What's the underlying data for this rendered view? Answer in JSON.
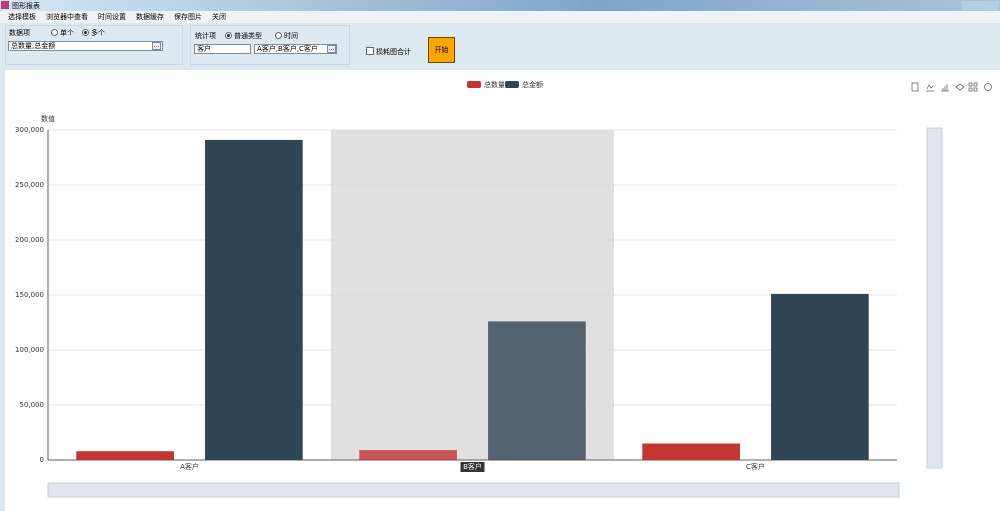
{
  "window": {
    "title": "图形报表"
  },
  "menu": [
    "选择模板",
    "浏览器中查看",
    "时间设置",
    "数据缓存",
    "保存图片",
    "关闭"
  ],
  "data_group": {
    "label": "数据项",
    "options": [
      "单个",
      "多个"
    ],
    "input": "总数量,总金额",
    "button": "..."
  },
  "stat_group": {
    "label": "统计项",
    "options": [
      "普通类型",
      "时间"
    ],
    "select": "客户",
    "input": "A客户,B客户,C客户",
    "button": "..."
  },
  "checkbox": "损耗图合计",
  "start_button": "开始",
  "chart_data": {
    "type": "bar",
    "y_label": "数值",
    "categories": [
      "A客户",
      "B客户",
      "C客户"
    ],
    "series": [
      {
        "name": "总数量",
        "color": "#c23531",
        "values": [
          8000,
          9000,
          15000
        ]
      },
      {
        "name": "总金额",
        "color": "#2f4554",
        "values": [
          291000,
          126000,
          151000
        ]
      }
    ],
    "ylim": [
      0,
      300000
    ],
    "yticks": [
      0,
      {
        "value": 50000,
        "label": "50,000"
      },
      {
        "value": 100000,
        "label": "100,000"
      },
      {
        "value": 150000,
        "label": "150,000"
      },
      {
        "value": 200000,
        "label": "200,000"
      },
      {
        "value": 250000,
        "label": "250,000"
      },
      {
        "value": 300000,
        "label": "300,000"
      }
    ],
    "grid": true,
    "legend": "top"
  }
}
